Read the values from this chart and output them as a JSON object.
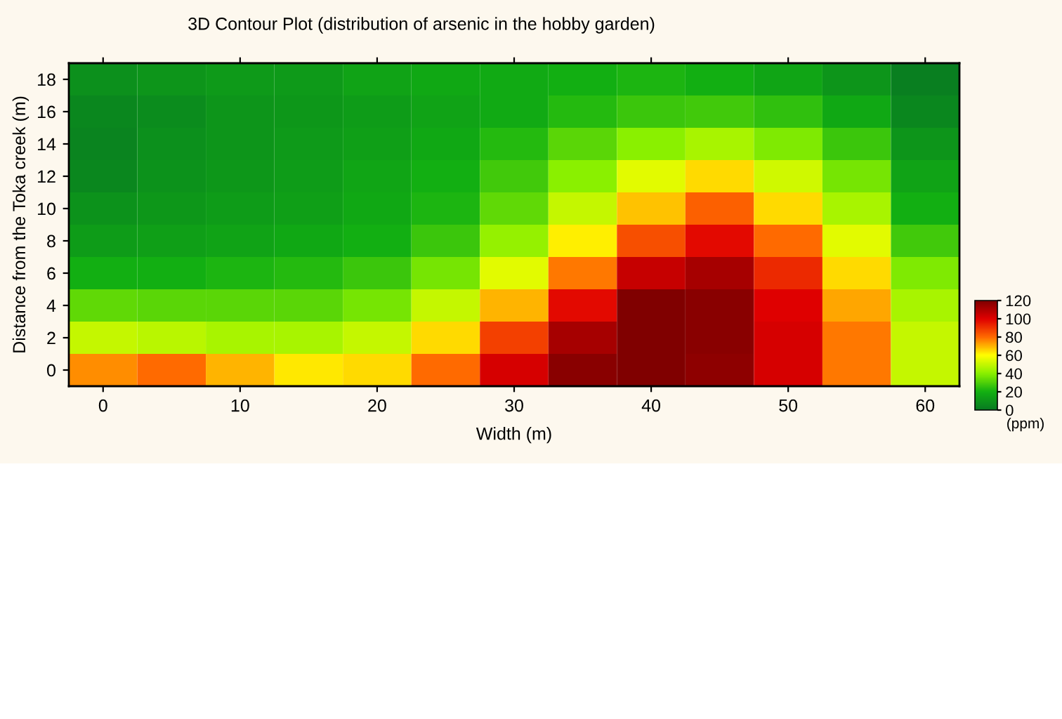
{
  "chart_data": {
    "type": "heatmap",
    "title": "3D Contour Plot (distribution of arsenic in the hobby garden)",
    "xlabel": "Width (m)",
    "ylabel": "Distance from the Toka creek (m)",
    "clabel": "(ppm)",
    "categories": [
      "0",
      null,
      "10",
      null,
      "20",
      null,
      "30",
      null,
      "40",
      null,
      "50",
      null,
      "60"
    ],
    "y_categories": [
      "18",
      "16",
      "14",
      "12",
      "10",
      "8",
      "6",
      "4",
      "2",
      "0"
    ],
    "cells": [
      [
        8,
        10,
        12,
        12,
        15,
        17,
        18,
        20,
        22,
        20,
        16,
        10,
        2
      ],
      [
        5,
        7,
        10,
        11,
        13,
        15,
        18,
        23,
        27,
        28,
        25,
        17,
        5
      ],
      [
        4,
        8,
        10,
        12,
        14,
        17,
        23,
        32,
        40,
        45,
        38,
        27,
        10
      ],
      [
        5,
        9,
        11,
        13,
        16,
        20,
        28,
        40,
        55,
        65,
        52,
        37,
        15
      ],
      [
        9,
        11,
        13,
        14,
        17,
        22,
        33,
        50,
        68,
        82,
        65,
        45,
        20
      ],
      [
        13,
        14,
        15,
        17,
        20,
        27,
        42,
        62,
        85,
        98,
        80,
        55,
        28
      ],
      [
        20,
        20,
        22,
        23,
        27,
        37,
        55,
        78,
        105,
        112,
        92,
        65,
        38
      ],
      [
        33,
        32,
        32,
        32,
        37,
        50,
        70,
        98,
        120,
        118,
        100,
        72,
        45
      ],
      [
        50,
        48,
        45,
        45,
        50,
        65,
        88,
        112,
        120,
        118,
        102,
        78,
        50
      ],
      [
        75,
        80,
        70,
        63,
        65,
        80,
        102,
        118,
        120,
        117,
        102,
        78,
        50
      ]
    ],
    "clim": [
      0,
      120
    ],
    "cticks": [
      0,
      20,
      40,
      60,
      80,
      100,
      120
    ],
    "colors": [
      "#087a22",
      "#12b012",
      "#8af000",
      "#ffff00",
      "#ff6a00",
      "#e00000",
      "#800000"
    ]
  }
}
